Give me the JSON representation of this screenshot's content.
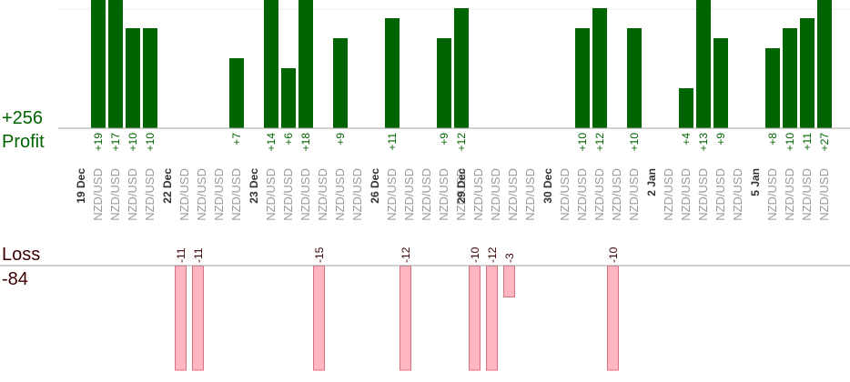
{
  "summary": {
    "profit_total": "+256",
    "profit_label": "Profit",
    "loss_label": "Loss",
    "loss_total": "-84"
  },
  "colors": {
    "profit_bar": "#006400",
    "loss_bar_fill": "#ffb6c1",
    "loss_bar_stroke": "#e07080",
    "profit_text": "#006400",
    "loss_text": "#3a0000",
    "pair_text": "#9a9a9a",
    "date_text": "#333333",
    "axis": "#a0a0a0"
  },
  "chart_data": {
    "type": "bar",
    "series": [
      {
        "values": [
          19,
          17,
          10,
          10,
          null,
          null,
          null,
          null,
          7,
          null,
          14,
          6,
          18,
          null,
          9,
          null,
          null,
          11,
          null,
          null,
          9,
          12,
          null,
          null,
          null,
          null,
          null,
          null,
          10,
          12,
          null,
          10,
          null,
          null,
          4,
          13,
          9,
          null,
          null,
          8,
          10,
          11,
          27
        ]
      },
      {
        "values": [
          null,
          null,
          null,
          null,
          null,
          -11,
          -11,
          null,
          null,
          null,
          null,
          null,
          null,
          -15,
          null,
          null,
          null,
          null,
          -12,
          null,
          null,
          null,
          -10,
          -12,
          -3,
          null,
          null,
          null,
          null,
          null,
          -10,
          null,
          null,
          null,
          null,
          null,
          null,
          null,
          null,
          null,
          null,
          null,
          null
        ]
      }
    ],
    "profit_labels": [
      "+19",
      "+17",
      "+10",
      "+10",
      "",
      "",
      "",
      "",
      "+7",
      "",
      "+14",
      "+6",
      "+18",
      "",
      "+9",
      "",
      "",
      "+11",
      "",
      "",
      "+9",
      "+12",
      "",
      "",
      "",
      "",
      "",
      "",
      "+10",
      "+12",
      "",
      "+10",
      "",
      "",
      "+4",
      "+13",
      "+9",
      "",
      "",
      "+8",
      "+10",
      "+11",
      "+27"
    ],
    "loss_labels": [
      "",
      "",
      "",
      "",
      "",
      "-11",
      "-11",
      "",
      "",
      "",
      "",
      "",
      "",
      "-15",
      "",
      "",
      "",
      "",
      "-12",
      "",
      "",
      "",
      "-10",
      "-12",
      "-3",
      "",
      "",
      "",
      "",
      "",
      "-10",
      "",
      "",
      "",
      "",
      "",
      "",
      "",
      "",
      "",
      "",
      "",
      ""
    ],
    "categories": [
      "NZD/USD",
      "NZD/USD",
      "NZD/USD",
      "NZD/USD",
      "",
      "NZD/USD",
      "NZD/USD",
      "NZD/USD",
      "NZD/USD",
      "",
      "NZD/USD",
      "NZD/USD",
      "NZD/USD",
      "NZD/USD",
      "NZD/USD",
      "NZD/USD",
      "",
      "NZD/USD",
      "NZD/USD",
      "NZD/USD",
      "NZD/USD",
      "NZD/USD",
      "NZD/USD",
      "NZD/USD",
      "NZD/USD",
      "NZD/USD",
      "",
      "NZD/USD",
      "NZD/USD",
      "NZD/USD",
      "NZD/USD",
      "NZD/USD",
      "",
      "NZD/USD",
      "NZD/USD",
      "NZD/USD",
      "NZD/USD",
      "NZD/USD",
      "",
      "NZD/USD",
      "NZD/USD",
      "NZD/USD",
      "NZD/USD"
    ],
    "date_labels": [
      "19 Dec",
      "22 Dec",
      "23 Dec",
      "26 Dec",
      "29 Dec",
      "30 Dec",
      "2 Jan",
      "5 Jan"
    ],
    "date_positions": [
      0,
      5,
      10,
      17,
      22,
      27,
      33,
      39
    ],
    "profit_ylim": [
      0,
      12
    ],
    "loss_ylim": [
      -10,
      0
    ],
    "grid": false
  }
}
